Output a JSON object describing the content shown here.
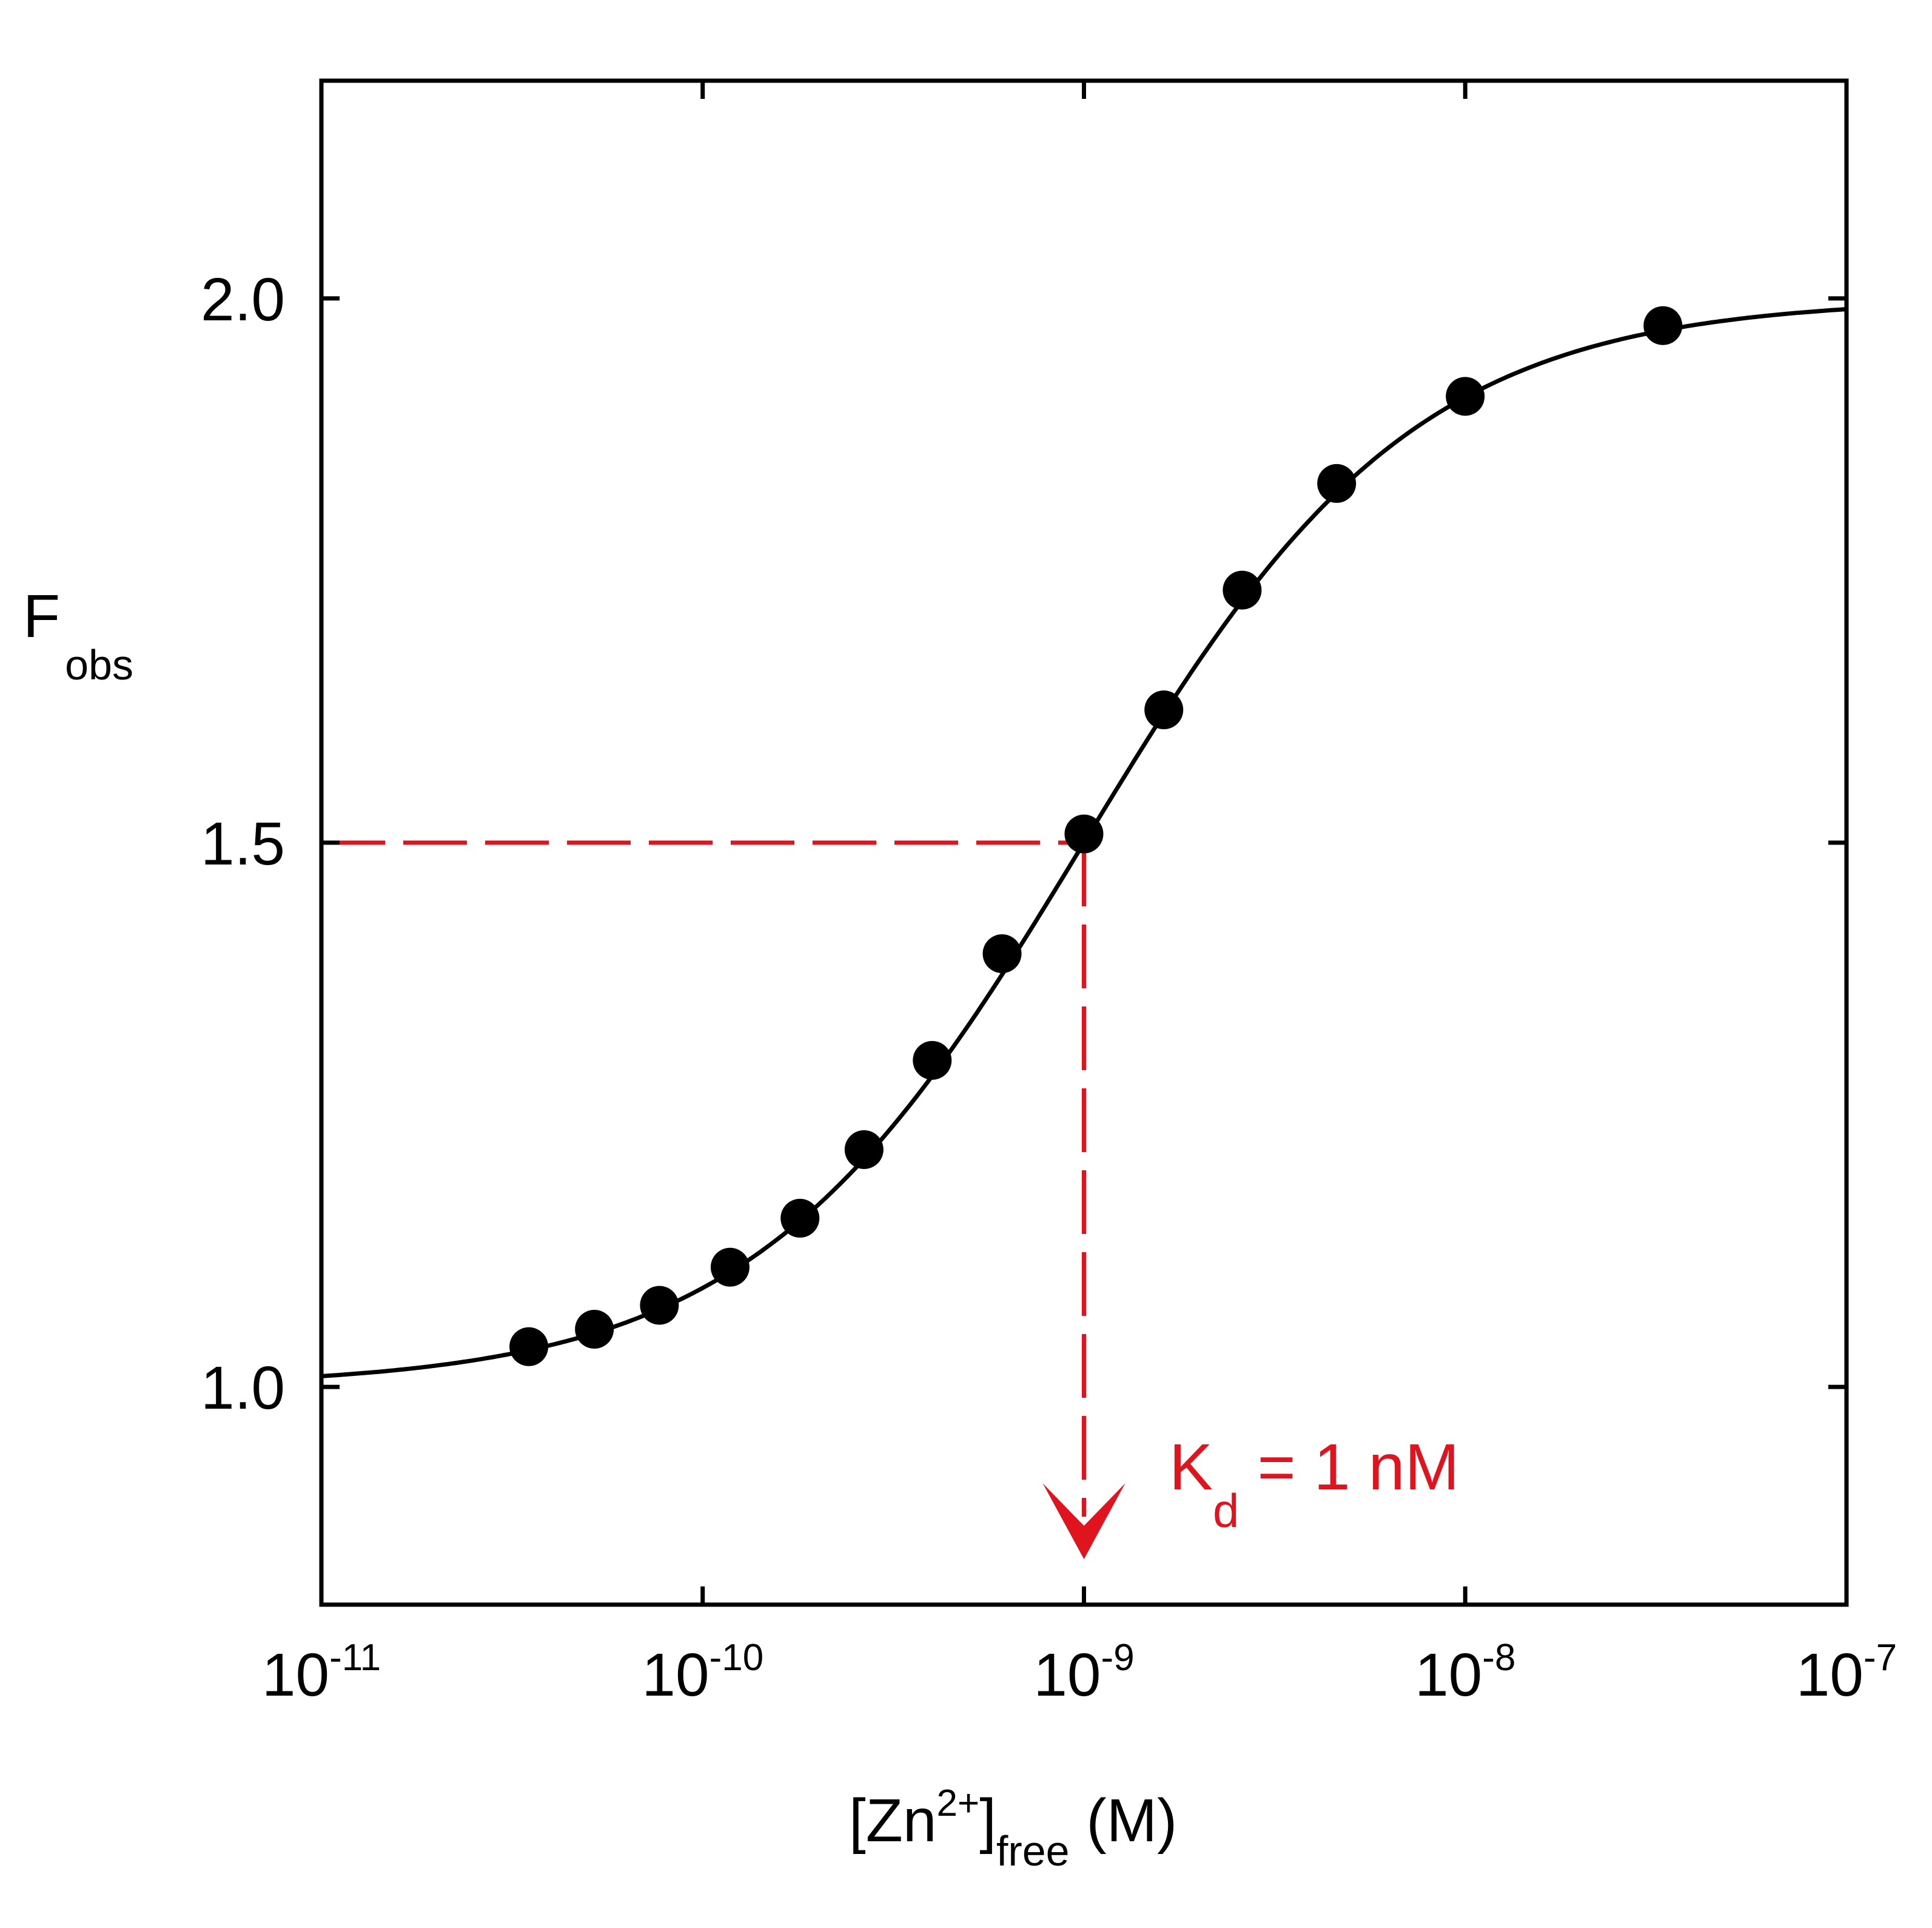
{
  "chart_data": {
    "type": "scatter",
    "x_scale": "log",
    "xlim": [
      1e-11,
      1e-07
    ],
    "ylim": [
      0.8,
      2.2
    ],
    "x_ticks": [
      {
        "value": 1e-11,
        "base": "10",
        "exp": "-11"
      },
      {
        "value": 1e-10,
        "base": "10",
        "exp": "-10"
      },
      {
        "value": 1e-09,
        "base": "10",
        "exp": "-9"
      },
      {
        "value": 1e-08,
        "base": "10",
        "exp": "-8"
      },
      {
        "value": 1e-07,
        "base": "10",
        "exp": "-7"
      }
    ],
    "y_ticks": [
      {
        "value": 1.0,
        "label": "1.0"
      },
      {
        "value": 1.5,
        "label": "1.5"
      },
      {
        "value": 2.0,
        "label": "2.0"
      }
    ],
    "xlabel": {
      "open": "[Zn",
      "sup": "2+",
      "close": "]",
      "sub": "free",
      "tail": " (M)"
    },
    "ylabel": {
      "main": "F",
      "sub": "obs"
    },
    "grid": false,
    "series": [
      {
        "x": [
          3.5e-11,
          5.2e-11,
          7.7e-11,
          1.18e-10,
          1.8e-10,
          2.65e-10,
          4e-10,
          6.1e-10,
          1e-09,
          1.62e-09,
          2.6e-09,
          4.6e-09,
          1e-08,
          3.3e-08
        ],
        "y": [
          1.037,
          1.053,
          1.075,
          1.11,
          1.155,
          1.218,
          1.3,
          1.398,
          1.508,
          1.622,
          1.732,
          1.83,
          1.91,
          1.975
        ]
      }
    ],
    "fit": {
      "model": "binding",
      "kd": 1e-09,
      "bottom": 1.0,
      "top": 2.0
    },
    "guide_lines": {
      "x": 1e-09,
      "y": 1.5,
      "color": "#e0141e"
    },
    "annotation": {
      "main": "K",
      "sub": "d",
      "tail": " = 1 nM",
      "color": "#e0141e"
    }
  }
}
